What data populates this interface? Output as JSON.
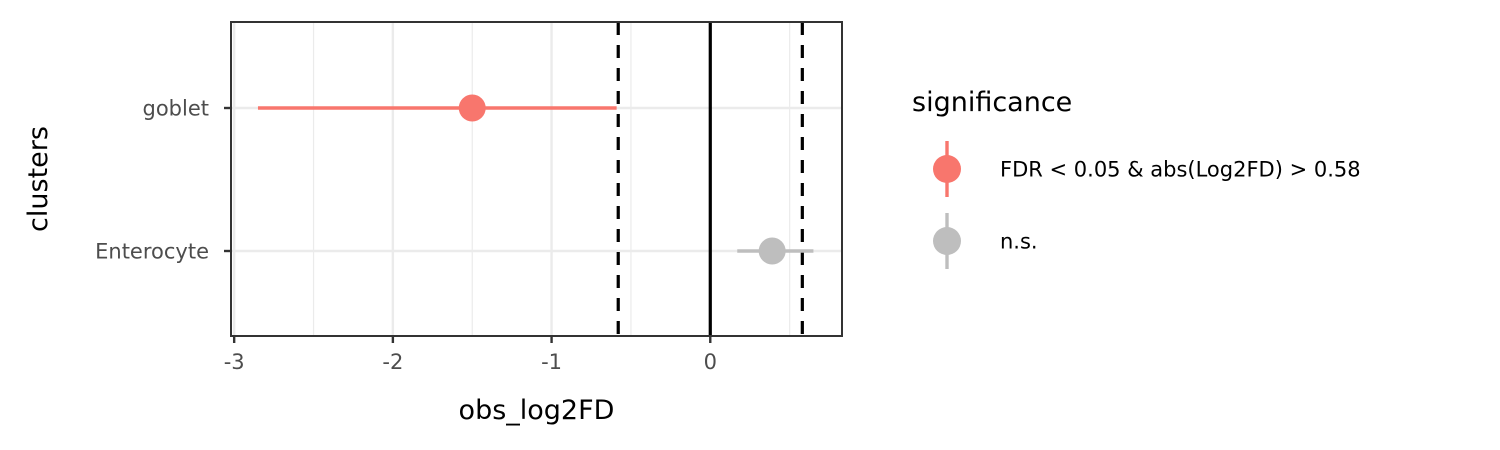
{
  "chart_data": {
    "type": "scatter",
    "subtype": "forest-plot",
    "title": "",
    "xlabel": "obs_log2FD",
    "ylabel": "clusters",
    "xlim": [
      -3.02,
      0.83
    ],
    "xticks": [
      -3,
      -2,
      -1,
      0
    ],
    "xtick_labels": [
      "-3",
      "-2",
      "-1",
      "0"
    ],
    "categories": [
      "goblet",
      "Enterocyte"
    ],
    "grid": true,
    "legend": {
      "title": "significance",
      "placement": "right",
      "entries": [
        {
          "label": "FDR < 0.05 & abs(Log2FD) > 0.58",
          "color": "#F8766D"
        },
        {
          "label": "n.s.",
          "color": "#BEBEBE"
        }
      ]
    },
    "points": [
      {
        "category": "goblet",
        "value": -1.5,
        "lower": -2.85,
        "upper": -0.59,
        "significance": "FDR < 0.05 & abs(Log2FD) > 0.58"
      },
      {
        "category": "Enterocyte",
        "value": 0.39,
        "lower": 0.17,
        "upper": 0.65,
        "significance": "n.s."
      }
    ],
    "reference_lines": [
      {
        "x": 0,
        "style": "solid"
      },
      {
        "x": -0.58,
        "style": "dashed"
      },
      {
        "x": 0.58,
        "style": "dashed"
      }
    ]
  },
  "colors": {
    "significant": "#F8766D",
    "not_significant": "#BEBEBE",
    "grid": "#EBEBEB",
    "panel_border": "#333333"
  }
}
